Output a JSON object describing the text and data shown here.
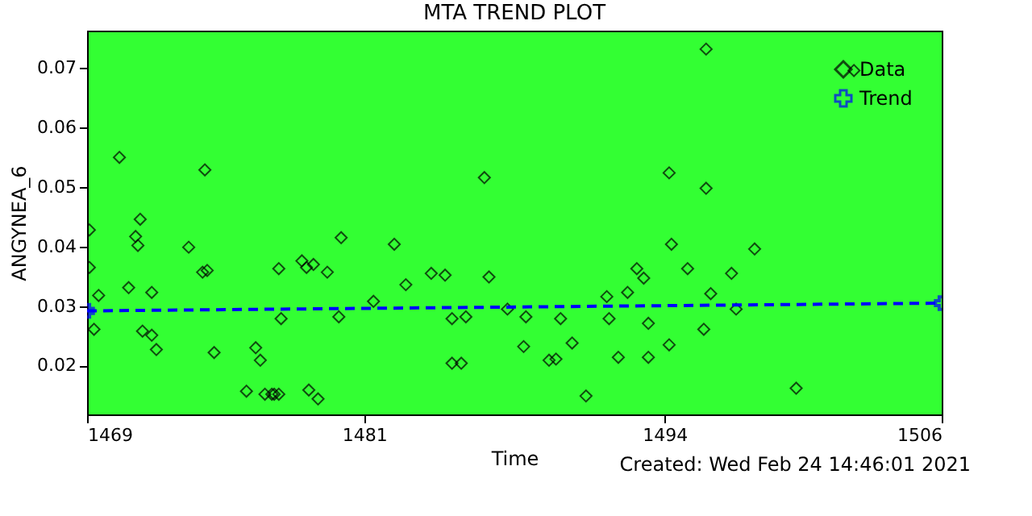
{
  "chart_data": {
    "type": "scatter",
    "title": "MTA TREND PLOT",
    "xlabel": "Time",
    "ylabel": "ANGYNEA_6",
    "xlim": [
      1469,
      1506
    ],
    "xticks": [
      1469,
      1481,
      1494,
      1506
    ],
    "ylim": [
      0.0118,
      0.0763
    ],
    "yticks": [
      0.02,
      0.03,
      0.04,
      0.05,
      0.06,
      0.07
    ],
    "grid": false,
    "legend": "top right",
    "series": [
      {
        "name": "Data",
        "marker": "diamond",
        "color": "#000000",
        "x": [
          1469.1,
          1469.1,
          1469.5,
          1469.3,
          1470.4,
          1470.8,
          1471.3,
          1471.1,
          1471.2,
          1471.8,
          1471.4,
          1471.8,
          1472.0,
          1473.4,
          1474.1,
          1474.0,
          1474.2,
          1474.5,
          1475.9,
          1476.3,
          1476.5,
          1476.7,
          1477.0,
          1477.1,
          1477.3,
          1477.3,
          1477.4,
          1478.3,
          1478.5,
          1478.8,
          1478.6,
          1479.0,
          1479.4,
          1479.9,
          1480.0,
          1481.4,
          1482.3,
          1482.8,
          1483.9,
          1484.5,
          1484.8,
          1485.4,
          1484.8,
          1485.2,
          1486.2,
          1486.4,
          1487.2,
          1488.0,
          1487.9,
          1489.0,
          1489.3,
          1489.5,
          1490.0,
          1490.6,
          1491.5,
          1491.6,
          1492.0,
          1492.4,
          1492.8,
          1493.1,
          1493.3,
          1493.3,
          1494.2,
          1494.2,
          1494.3,
          1495.0,
          1495.7,
          1495.8,
          1495.8,
          1496.0,
          1496.9,
          1497.1,
          1497.9,
          1499.7,
          1502.2
        ],
        "values": [
          0.0428,
          0.0365,
          0.0318,
          0.0261,
          0.055,
          0.0331,
          0.0446,
          0.0417,
          0.0402,
          0.0323,
          0.0258,
          0.0251,
          0.0227,
          0.0399,
          0.0529,
          0.0357,
          0.036,
          0.0222,
          0.0157,
          0.023,
          0.0209,
          0.0152,
          0.0152,
          0.0152,
          0.0152,
          0.0363,
          0.0279,
          0.0376,
          0.0365,
          0.037,
          0.0159,
          0.0144,
          0.0357,
          0.0282,
          0.0415,
          0.0308,
          0.0404,
          0.0336,
          0.0355,
          0.0352,
          0.0279,
          0.0282,
          0.0204,
          0.0204,
          0.0516,
          0.0349,
          0.0295,
          0.0282,
          0.0232,
          0.0209,
          0.0211,
          0.0279,
          0.0238,
          0.0149,
          0.0316,
          0.0279,
          0.0214,
          0.0323,
          0.0363,
          0.0347,
          0.0271,
          0.0214,
          0.0235,
          0.0524,
          0.0404,
          0.0363,
          0.0261,
          0.0732,
          0.0498,
          0.0321,
          0.0355,
          0.0295,
          0.0396,
          0.0162,
          0.0696
        ]
      },
      {
        "name": "Trend",
        "type": "line",
        "line_style": "dashed",
        "marker": "cross",
        "color": "#0000ff",
        "x": [
          1469,
          1506
        ],
        "values": [
          0.0292,
          0.0305
        ]
      }
    ],
    "annotations": [
      "Created: Wed Feb 24 14:46:01 2021"
    ]
  }
}
